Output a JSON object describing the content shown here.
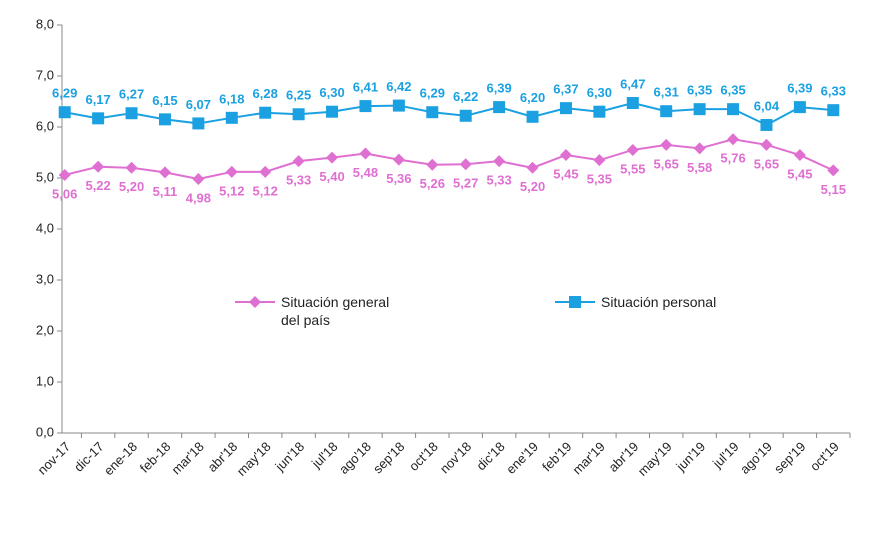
{
  "chart_data": {
    "type": "line",
    "categories": [
      "nov-17",
      "dic-17",
      "ene-18",
      "feb-18",
      "mar'18",
      "abr'18",
      "may'18",
      "jun'18",
      "jul'18",
      "ago'18",
      "sep'18",
      "oct'18",
      "nov'18",
      "dic'18",
      "ene'19",
      "feb'19",
      "mar'19",
      "abr'19",
      "may'19",
      "jun'19",
      "jul'19",
      "ago'19",
      "sep'19",
      "oct'19"
    ],
    "series": [
      {
        "name": "Situación general del país",
        "color": "#e06fd2",
        "marker": "diamond",
        "values": [
          5.06,
          5.22,
          5.2,
          5.11,
          4.98,
          5.12,
          5.12,
          5.33,
          5.4,
          5.48,
          5.36,
          5.26,
          5.27,
          5.33,
          5.2,
          5.45,
          5.35,
          5.55,
          5.65,
          5.58,
          5.76,
          5.65,
          5.45,
          5.15
        ],
        "value_labels": [
          "5,06",
          "5,22",
          "5,20",
          "5,11",
          "4,98",
          "5,12",
          "5,12",
          "5,33",
          "5,40",
          "5,48",
          "5,36",
          "5,26",
          "5,27",
          "5,33",
          "5,20",
          "5,45",
          "5,35",
          "5,55",
          "5,65",
          "5,58",
          "5,76",
          "5,65",
          "5,45",
          "5,15"
        ]
      },
      {
        "name": "Situación personal",
        "color": "#1ba1e2",
        "marker": "square",
        "values": [
          6.29,
          6.17,
          6.27,
          6.15,
          6.07,
          6.18,
          6.28,
          6.25,
          6.3,
          6.41,
          6.42,
          6.29,
          6.22,
          6.39,
          6.2,
          6.37,
          6.3,
          6.47,
          6.31,
          6.35,
          6.35,
          6.04,
          6.39,
          6.33
        ],
        "value_labels": [
          "6,29",
          "6,17",
          "6,27",
          "6,15",
          "6,07",
          "6,18",
          "6,28",
          "6,25",
          "6,30",
          "6,41",
          "6,42",
          "6,29",
          "6,22",
          "6,39",
          "6,20",
          "6,37",
          "6,30",
          "6,47",
          "6,31",
          "6,35",
          "6,35",
          "6,04",
          "6,39",
          "6,33"
        ]
      }
    ],
    "ylim": [
      0,
      8
    ],
    "yticks": [
      {
        "value": 0,
        "label": "0,0"
      },
      {
        "value": 1,
        "label": "1,0"
      },
      {
        "value": 2,
        "label": "2,0"
      },
      {
        "value": 3,
        "label": "3,0"
      },
      {
        "value": 4,
        "label": "4,0"
      },
      {
        "value": 5,
        "label": "5,0"
      },
      {
        "value": 6,
        "label": "6,0"
      },
      {
        "value": 7,
        "label": "7,0"
      },
      {
        "value": 8,
        "label": "8,0"
      }
    ],
    "grid": false
  }
}
